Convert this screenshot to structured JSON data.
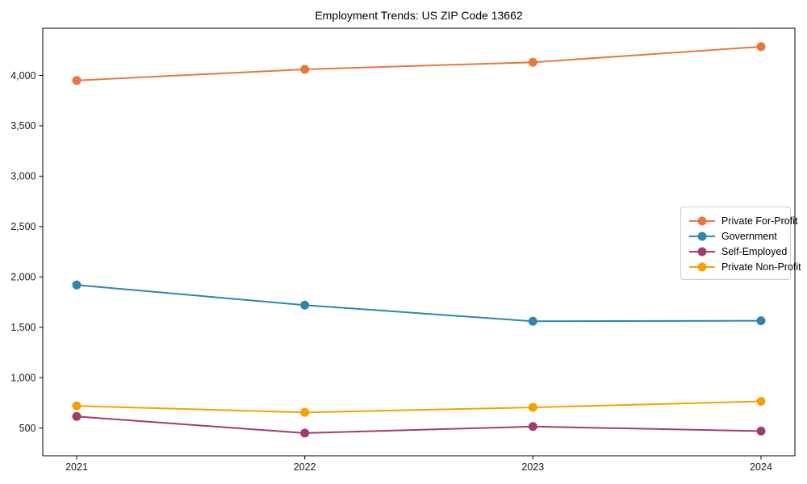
{
  "figure": {
    "background": "#ffffff",
    "axis_color": "#000000",
    "tick_label_color": "#1a1a1a",
    "legend_border_color": "#cccccc"
  },
  "chart_data": {
    "type": "line",
    "title": "Employment Trends: US ZIP Code 13662",
    "xlabel": "",
    "ylabel": "",
    "categories": [
      "2021",
      "2022",
      "2023",
      "2024"
    ],
    "series": [
      {
        "name": "Private For-Profit",
        "color": "#e8773b",
        "values": [
          3950,
          4060,
          4130,
          4285
        ]
      },
      {
        "name": "Government",
        "color": "#2e86ab",
        "values": [
          1920,
          1720,
          1560,
          1565
        ]
      },
      {
        "name": "Self-Employed",
        "color": "#a23b72",
        "values": [
          615,
          450,
          515,
          470
        ]
      },
      {
        "name": "Private Non-Profit",
        "color": "#f2a104",
        "values": [
          720,
          655,
          705,
          765
        ]
      }
    ],
    "ylim": [
      225,
      4468
    ],
    "yticks": [
      500,
      1000,
      1500,
      2000,
      2500,
      3000,
      3500,
      4000
    ],
    "ytick_labels": [
      "500",
      "1,000",
      "1,500",
      "2,000",
      "2,500",
      "3,000",
      "3,500",
      "4,000"
    ],
    "grid": false,
    "legend_position": "right-middle",
    "marker": "circle",
    "marker_radius": 5.5,
    "line_width": 2
  }
}
